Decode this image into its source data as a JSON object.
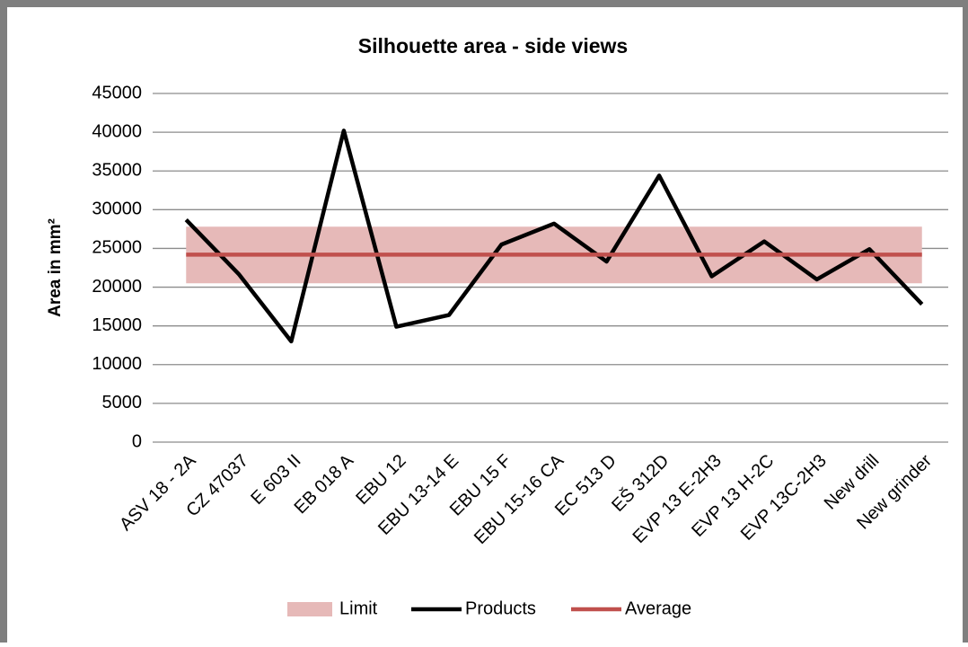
{
  "chart_data": {
    "type": "line",
    "title": "Silhouette area - side views",
    "y_label": "Area in mm²",
    "categories": [
      "ASV 18 - 2A",
      "CZ 47037",
      "E 603 II",
      "EB 018 A",
      "EBU 12",
      "EBU 13-14 E",
      "EBU 15 F",
      "EBU 15-16 CA",
      "EC 513 D",
      "EŠ 312D",
      "EVP 13 E-2H3",
      "EVP 13 H-2C",
      "EVP 13C-2H3",
      "New drill",
      "New grinder"
    ],
    "series": [
      {
        "name": "Limit",
        "color": "#e6b9b8",
        "type": "band",
        "low": [
          20500,
          20500,
          20500,
          20500,
          20500,
          20500,
          20500,
          20500,
          20500,
          20500,
          20500,
          20500,
          20500,
          20500,
          20500
        ],
        "high": [
          27800,
          27800,
          27800,
          27800,
          27800,
          27800,
          27800,
          27800,
          27800,
          27800,
          27800,
          27800,
          27800,
          27800,
          27800
        ]
      },
      {
        "name": "Products",
        "color": "#000000",
        "type": "line",
        "values": [
          28700,
          21700,
          13000,
          40200,
          14900,
          16400,
          25500,
          28200,
          23300,
          34400,
          21400,
          25900,
          21000,
          24900,
          17800
        ]
      },
      {
        "name": "Average",
        "color": "#c0504d",
        "type": "line",
        "values": [
          24200,
          24200,
          24200,
          24200,
          24200,
          24200,
          24200,
          24200,
          24200,
          24200,
          24200,
          24200,
          24200,
          24200,
          24200
        ]
      }
    ],
    "ylim": [
      0,
      45000
    ],
    "yticks": [
      0,
      5000,
      10000,
      15000,
      20000,
      25000,
      30000,
      35000,
      40000,
      45000
    ],
    "grid": true,
    "legend": "bottom"
  }
}
